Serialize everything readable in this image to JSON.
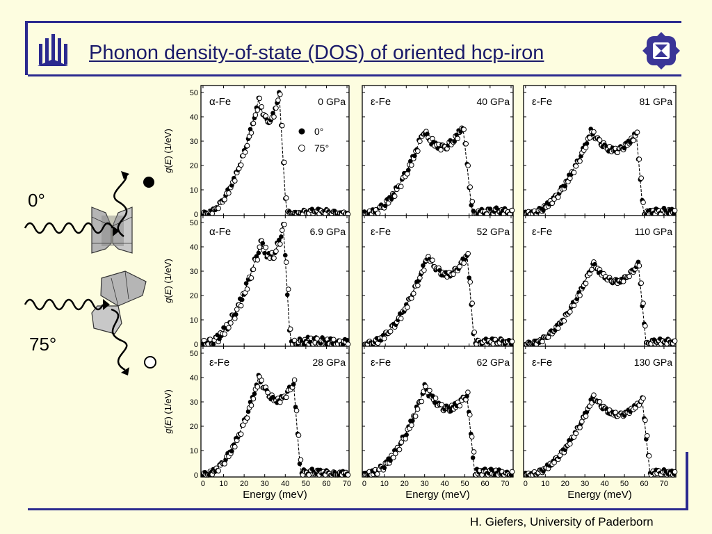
{
  "header": {
    "title": "Phonon density-of-state (DOS) of oriented hcp-iron"
  },
  "footer": {
    "credit": "H. Giefers, University of Paderborn"
  },
  "illustration": {
    "label_0": "0°",
    "label_75": "75°"
  },
  "colors": {
    "accent": "#2b2a8f",
    "background": "#fdfde0"
  },
  "chart_data": [
    {
      "type": "scatter",
      "phase": "α-Fe",
      "pressure": "0 GPa",
      "xlim": [
        -1,
        71
      ],
      "ylim": [
        0,
        52
      ],
      "ylabel": "g(E) (1/eV)",
      "yticks": [
        0,
        10,
        20,
        30,
        40,
        50
      ],
      "xlabel": "",
      "legend": [
        "0°",
        "75°"
      ],
      "ea": 27,
      "eb": 37,
      "ha": 47,
      "hb": 50,
      "emax": 40.5,
      "noise": 0.8
    },
    {
      "type": "scatter",
      "phase": "ε-Fe",
      "pressure": "40 GPa",
      "xlim": [
        -1,
        71
      ],
      "ylim": [
        0,
        52
      ],
      "ea": 28,
      "eb": 47,
      "ha": 34,
      "hb": 36,
      "emax": 51.5,
      "noise": 1.2
    },
    {
      "type": "scatter",
      "phase": "ε-Fe",
      "pressure": "81 GPa",
      "xlim": [
        -1,
        76
      ],
      "ylim": [
        0,
        52
      ],
      "ea": 33,
      "eb": 56,
      "ha": 34,
      "hb": 33,
      "emax": 59.5,
      "noise": 1.0
    },
    {
      "type": "scatter",
      "phase": "α-Fe",
      "pressure": "6.9 GPa",
      "xlim": [
        -1,
        71
      ],
      "ylim": [
        0,
        52
      ],
      "ylabel": "g(E) (1/eV)",
      "yticks": [
        0,
        10,
        20,
        30,
        40,
        50
      ],
      "ea": 28,
      "eb": 39,
      "ha": 42,
      "hb": 49,
      "emax": 42.5,
      "noise": 1.6
    },
    {
      "type": "scatter",
      "phase": "ε-Fe",
      "pressure": "52 GPa",
      "xlim": [
        -1,
        71
      ],
      "ylim": [
        0,
        52
      ],
      "ea": 30,
      "eb": 49,
      "ha": 36,
      "hb": 37,
      "emax": 52.5,
      "noise": 1.0
    },
    {
      "type": "scatter",
      "phase": "ε-Fe",
      "pressure": "110 GPa",
      "xlim": [
        -1,
        76
      ],
      "ylim": [
        0,
        52
      ],
      "ea": 34,
      "eb": 57,
      "ha": 33,
      "hb": 33,
      "emax": 61,
      "noise": 0.8
    },
    {
      "type": "scatter",
      "phase": "ε-Fe",
      "pressure": "28 GPa",
      "xlim": [
        -1,
        71
      ],
      "ylim": [
        0,
        52
      ],
      "ylabel": "g(E) (1/eV)",
      "yticks": [
        0,
        10,
        20,
        30,
        40,
        50
      ],
      "xticks": [
        0,
        10,
        20,
        30,
        40,
        50,
        60,
        70
      ],
      "xlabel": "Energy (meV)",
      "ea": 27,
      "eb": 44,
      "ha": 40,
      "hb": 38,
      "emax": 47.5,
      "noise": 1.0
    },
    {
      "type": "scatter",
      "phase": "ε-Fe",
      "pressure": "62 GPa",
      "xlim": [
        -1,
        74
      ],
      "ylim": [
        0,
        52
      ],
      "xticks": [
        0,
        10,
        20,
        30,
        40,
        50,
        60,
        70
      ],
      "xlabel": "Energy (meV)",
      "ea": 30,
      "eb": 51,
      "ha": 36,
      "hb": 33,
      "emax": 55,
      "noise": 1.2
    },
    {
      "type": "scatter",
      "phase": "ε-Fe",
      "pressure": "130 GPa",
      "xlim": [
        -1,
        76
      ],
      "ylim": [
        0,
        52
      ],
      "xticks": [
        0,
        10,
        20,
        30,
        40,
        50,
        60,
        70
      ],
      "xlabel": "Energy (meV)",
      "ea": 34,
      "eb": 59,
      "ha": 32,
      "hb": 31,
      "emax": 63,
      "noise": 0.8
    }
  ]
}
